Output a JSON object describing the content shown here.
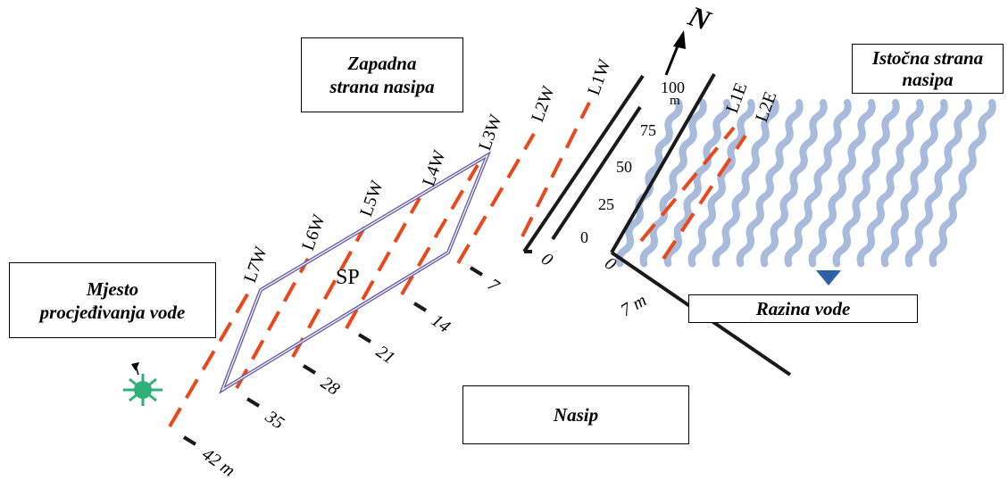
{
  "labels": {
    "west_side_line1": "Zapadna",
    "west_side_line2": "strana nasipa",
    "east_side_line1": "Istočna strana",
    "east_side_line2": "nasipa",
    "seepage_line1": "Mjesto",
    "seepage_line2": "procjeđivanja vode",
    "water_level": "Razina vode",
    "dam": "Nasip",
    "north": "N",
    "zone": "SP"
  },
  "lines": {
    "west": [
      "L1W",
      "L2W",
      "L3W",
      "L4W",
      "L5W",
      "L6W",
      "L7W"
    ],
    "east": [
      "L1E",
      "L2E"
    ]
  },
  "axis_west": [
    "0",
    "7",
    "14",
    "21",
    "28",
    "35",
    "42 m"
  ],
  "axis_north": [
    "0",
    "25",
    "50",
    "75",
    "100",
    "m"
  ],
  "axis_east_end": "7 m",
  "colors": {
    "survey_line": "#e8481c",
    "axis": "#1a1a1a",
    "zone_outline": "#6a5fae",
    "water": "#a9bbdc",
    "water_marker": "#2f5fa8",
    "seepage_marker": "#2fb07a"
  }
}
